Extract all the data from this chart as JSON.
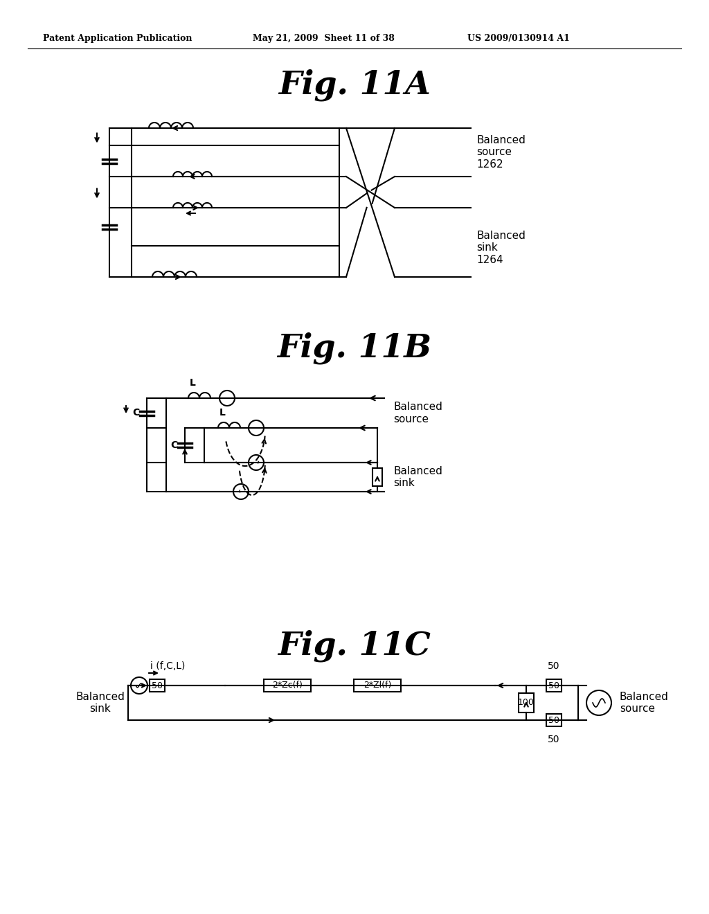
{
  "header_left": "Patent Application Publication",
  "header_mid": "May 21, 2009  Sheet 11 of 38",
  "header_right": "US 2009/0130914 A1",
  "fig11A_title": "Fig. 11A",
  "fig11B_title": "Fig. 11B",
  "fig11C_title": "Fig. 11C",
  "bg_color": "#ffffff",
  "line_color": "#000000",
  "fig11A_label1": "Balanced\nsource\n1262",
  "fig11A_label2": "Balanced\nsink\n1264",
  "fig11B_label1": "Balanced\nsource",
  "fig11B_label2": "Balanced\nsink",
  "fig11C_label1": "Balanced\nsink",
  "fig11C_label2": "Balanced\nsource",
  "fig11C_current": "i (f,C,L)"
}
